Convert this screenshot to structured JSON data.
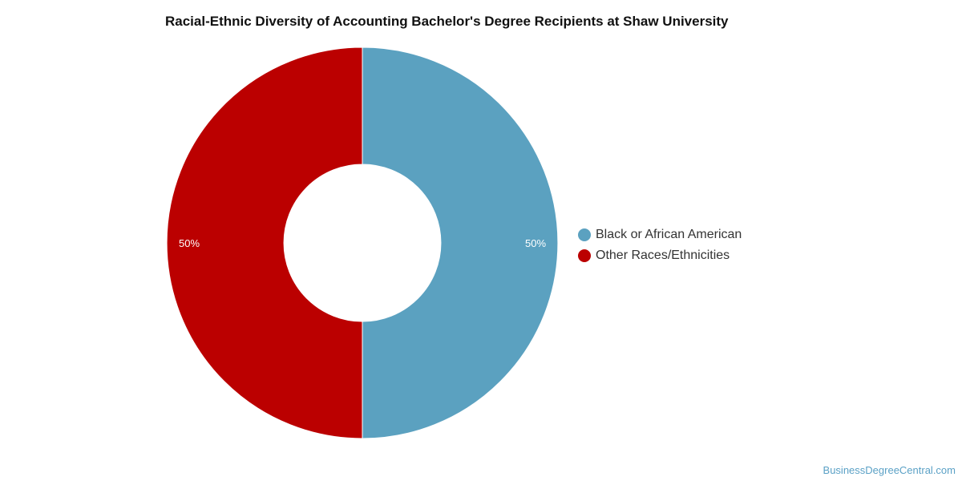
{
  "chart_data": {
    "type": "pie",
    "title": "Racial-Ethnic Diversity of Accounting Bachelor's Degree Recipients at Shaw University",
    "categories": [
      "Black or African American",
      "Other Races/Ethnicities"
    ],
    "values": [
      50,
      50
    ],
    "data_labels": [
      "50%",
      "50%"
    ],
    "colors": [
      "#5ba1c0",
      "#bb0000"
    ],
    "donut": true,
    "legend_placement": "right"
  },
  "legend": {
    "items": [
      {
        "label": "Black or African American",
        "color": "#5ba1c0"
      },
      {
        "label": "Other Races/Ethnicities",
        "color": "#bb0000"
      }
    ]
  },
  "credit": "BusinessDegreeCentral.com"
}
